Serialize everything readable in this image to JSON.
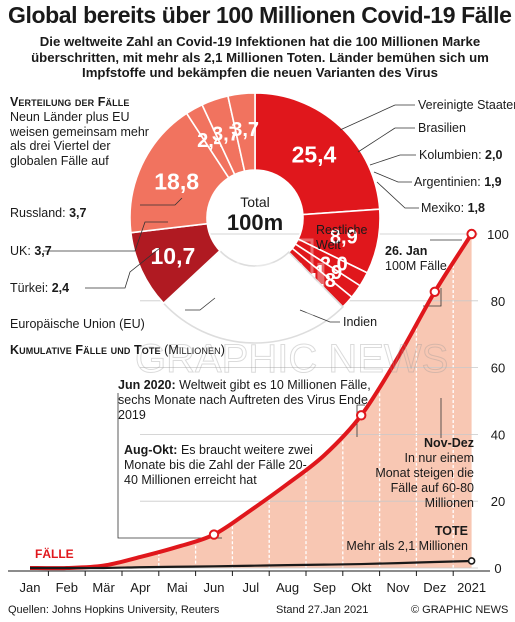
{
  "header": {
    "title": "Global bereits über 100 Millionen Covid-19 Fälle",
    "subtitle": "Die weltweite Zahl an Covid-19 Infektionen hat die 100 Millionen Marke überschritten, mit mehr als 2,1 Millionen Toten. Länder bemühen sich um Impfstoffe und bekämpfen die neuen Varianten des Virus"
  },
  "distribution": {
    "heading": "Verteilung der Fälle",
    "description": "Neun Länder plus EU weisen gemeinsam mehr als drei Viertel der globalen Fälle auf",
    "center_label": "Total",
    "center_value": "100m",
    "rest_label": "Restliche Welt"
  },
  "chart_data": [
    {
      "type": "pie",
      "title": "Verteilung der Fälle",
      "center_text": "Total 100m",
      "slices": [
        {
          "label": "Vereinigte Staaten",
          "value": 25.4,
          "value_label": "25,4",
          "color": "#e0171c"
        },
        {
          "label": "Brasilien",
          "value": 8.9,
          "value_label": "8,9",
          "color": "#e0171c"
        },
        {
          "label": "Kolumbien",
          "value": 2.0,
          "value_label": "2,0",
          "color": "#e0171c"
        },
        {
          "label": "Argentinien",
          "value": 1.9,
          "value_label": "1,9",
          "color": "#e0171c"
        },
        {
          "label": "Mexiko",
          "value": 1.8,
          "value_label": "1,8",
          "color": "#e0171c"
        },
        {
          "label": "Restliche Welt",
          "value": 27.1,
          "value_label": "",
          "color": "#ffffff"
        },
        {
          "label": "Indien",
          "value": 10.7,
          "value_label": "10,7",
          "color": "#b01a22"
        },
        {
          "label": "Europäische Union (EU)",
          "value": 18.8,
          "value_label": "18,8",
          "color": "#f1735f"
        },
        {
          "label": "Türkei",
          "value": 2.4,
          "value_label": "2,4",
          "color": "#f1735f"
        },
        {
          "label": "UK",
          "value": 3.7,
          "value_label": "3,7",
          "color": "#f1735f"
        },
        {
          "label": "Russland",
          "value": 3.7,
          "value_label": "3,7",
          "color": "#f1735f"
        }
      ]
    },
    {
      "type": "area",
      "title": "Kumulative Fälle und Tote (Millionen)",
      "x": [
        "Jan",
        "Feb",
        "Mär",
        "Apr",
        "Mai",
        "Jun",
        "Jul",
        "Aug",
        "Sep",
        "Okt",
        "Nov",
        "Dez",
        "2021"
      ],
      "ylim": [
        0,
        100
      ],
      "yticks": [
        0,
        20,
        40,
        60,
        80,
        100
      ],
      "series": [
        {
          "name": "Fälle",
          "color": "#e0171c",
          "values": [
            0,
            0,
            0.7,
            3.3,
            6.3,
            10,
            17.3,
            25.2,
            33.8,
            45.7,
            63.1,
            82.7,
            100
          ]
        },
        {
          "name": "Tote",
          "color": "#1a1a1a",
          "values": [
            0,
            0,
            0,
            0.23,
            0.37,
            0.5,
            0.67,
            0.85,
            1.0,
            1.18,
            1.46,
            1.8,
            2.1
          ]
        }
      ]
    }
  ],
  "labels": {
    "usa": "Vereinigte Staaten",
    "brasilien": "Brasilien",
    "kolumbien": "Kolumbien:",
    "kolumbien_val": "2,0",
    "argentinien": "Argentinien:",
    "argentinien_val": "1,9",
    "mexiko": "Mexiko:",
    "mexiko_val": "1,8",
    "russland": "Russland:",
    "russland_val": "3,7",
    "uk": "UK:",
    "uk_val": "3,7",
    "tuerkei": "Türkei:",
    "tuerkei_val": "2,4",
    "eu": "Europäische Union (EU)",
    "indien": "Indien"
  },
  "cumulative": {
    "heading": "Kumulative Fälle und Tote",
    "unit": "(Millionen)",
    "cases_label": "FÄLLE",
    "jan26_head": "26. Jan",
    "jan26_text": "100M Fälle",
    "jun_head": "Jun 2020:",
    "jun_text": "Weltweit gibt es 10 Millionen Fälle, sechs Monate nach Auftreten des Virus Ende 2019",
    "augokt_head": "Aug-Okt:",
    "augokt_text": "Es braucht weitere zwei Monate bis die Zahl der Fälle 20-40 Millionen erreicht hat",
    "novdez_head": "Nov-Dez",
    "novdez_text": "In nur einem Monat steigen die Fälle auf 60-80 Millionen",
    "tote_head": "TOTE",
    "tote_text": "Mehr als 2,1 Millionen"
  },
  "watermark": "GRAPHIC NEWS",
  "footer": {
    "sources": "Quellen: Johns Hopkins University, Reuters",
    "date": "Stand 27.Jan 2021",
    "copyright": "© GRAPHIC NEWS"
  },
  "colors": {
    "red": "#e0171c",
    "darkred": "#b01a22",
    "salmon": "#f1735f",
    "peach": "#f8c7b3"
  }
}
